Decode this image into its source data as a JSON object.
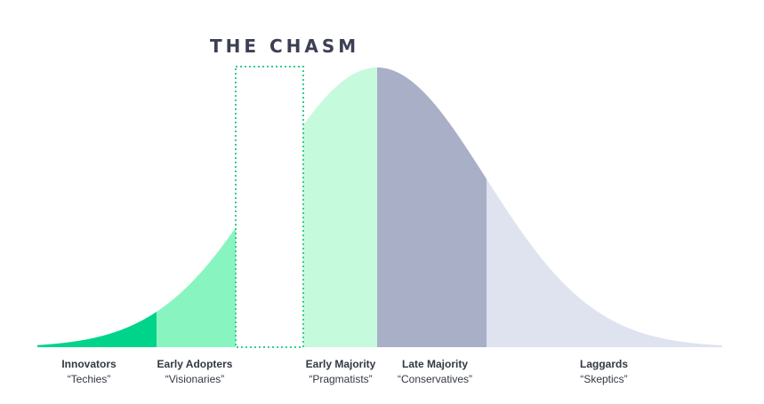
{
  "title": "THE CHASM",
  "segments": [
    {
      "name": "Innovators",
      "sub": "“Techies”",
      "color": "#00d48a"
    },
    {
      "name": "Early Adopters",
      "sub": "“Visionaries”",
      "color": "#88f5c0"
    },
    {
      "name": "Early Majority",
      "sub": "“Pragmatists”",
      "color": "#c6fadd"
    },
    {
      "name": "Late Majority",
      "sub": "“Conservatives”",
      "color": "#a9afc7"
    },
    {
      "name": "Laggards",
      "sub": "“Skeptics”",
      "color": "#dfe2ef"
    }
  ],
  "colors": {
    "chasm_outline": "#34cf8a",
    "baseline": "#e6e8f0",
    "text": "#333844"
  }
}
